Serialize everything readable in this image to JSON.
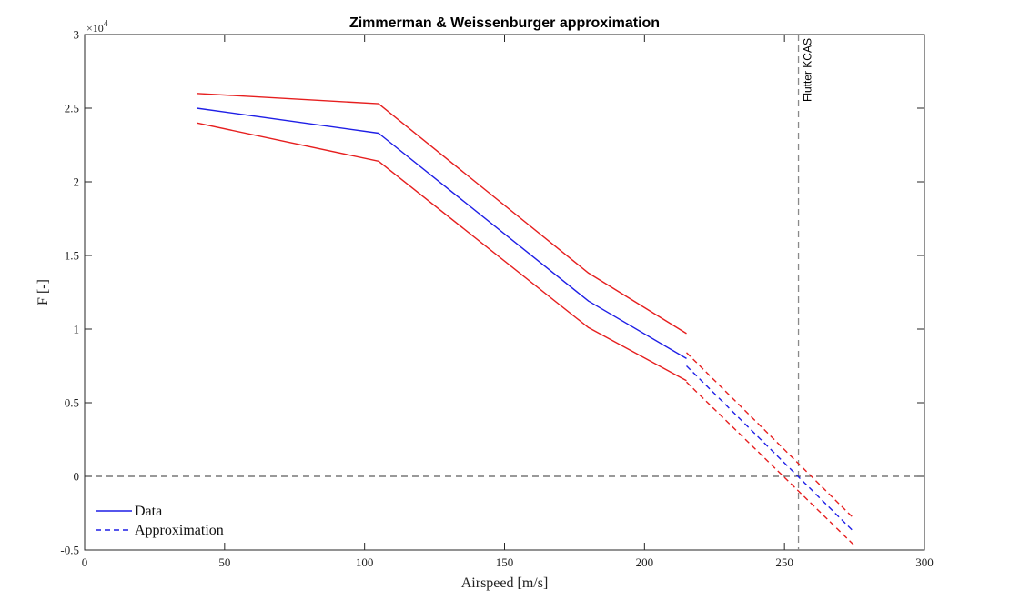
{
  "chart_data": {
    "type": "line",
    "title": "Zimmerman & Weissenburger approximation",
    "xlabel": "Airspeed [m/s]",
    "ylabel": "F [-]",
    "xlim": [
      0,
      300
    ],
    "ylim": [
      -5000,
      30000
    ],
    "xticks": [
      0,
      50,
      100,
      150,
      200,
      250,
      300
    ],
    "yticks": [
      -5000,
      0,
      5000,
      10000,
      15000,
      20000,
      25000,
      30000
    ],
    "ytick_labels": [
      "-0.5",
      "0",
      "0.5",
      "1",
      "1.5",
      "2",
      "2.5",
      "3"
    ],
    "y_exponent_label": "×10",
    "y_exponent_power": "4",
    "grid": false,
    "legend": {
      "placement": "bottom-left",
      "entries": [
        "Data",
        "Approximation"
      ]
    },
    "colors": {
      "data": "#1f1fe6",
      "bounds": "#e61f1f",
      "reference": "#8a8a8a"
    },
    "series": [
      {
        "name": "Data",
        "role": "data",
        "style": "solid",
        "color": "#1f1fe6",
        "x": [
          40,
          105,
          180,
          215
        ],
        "y": [
          25000,
          23300,
          11900,
          8000
        ]
      },
      {
        "role": "upper-bound",
        "style": "solid",
        "color": "#e61f1f",
        "x": [
          40,
          105,
          180,
          215
        ],
        "y": [
          26000,
          25300,
          13800,
          9700
        ]
      },
      {
        "role": "lower-bound",
        "style": "solid",
        "color": "#e61f1f",
        "x": [
          40,
          105,
          180,
          215
        ],
        "y": [
          24000,
          21400,
          10100,
          6500
        ]
      },
      {
        "name": "Approximation",
        "role": "approximation",
        "style": "dashed",
        "color": "#1f1fe6",
        "x": [
          215,
          275
        ],
        "y": [
          7500,
          -3800
        ]
      },
      {
        "role": "approximation-upper",
        "style": "dashed",
        "color": "#e61f1f",
        "x": [
          215,
          275
        ],
        "y": [
          8400,
          -2900
        ]
      },
      {
        "role": "approximation-lower",
        "style": "dashed",
        "color": "#e61f1f",
        "x": [
          215,
          275
        ],
        "y": [
          6400,
          -4700
        ]
      }
    ],
    "reference_lines": [
      {
        "orientation": "vertical",
        "value": 255,
        "label": "Flutter KCAS",
        "style": "dashed"
      },
      {
        "orientation": "horizontal",
        "value": 0,
        "label": "",
        "style": "dashed"
      }
    ]
  }
}
